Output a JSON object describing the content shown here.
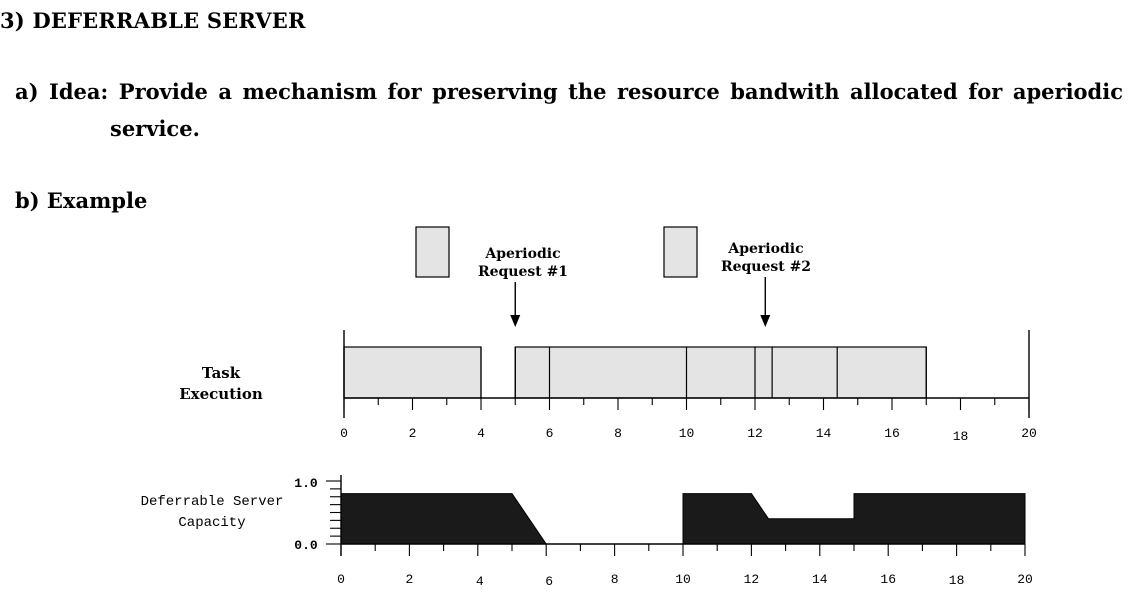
{
  "title": "3) DEFERRABLE SERVER",
  "idea": {
    "line1": "a) Idea: Provide a mechanism for preserving the resource bandwith allocated for aperiodic",
    "line2": "service."
  },
  "example_heading": "b) Example",
  "requests": [
    {
      "line1": "Aperiodic",
      "line2": "Request #1",
      "arrival_time": 5
    },
    {
      "line1": "Aperiodic",
      "line2": "Request #2",
      "arrival_time": 12.3
    }
  ],
  "task_execution": {
    "label_line1": "Task",
    "label_line2": "Execution",
    "busy_segments": [
      [
        0,
        4
      ],
      [
        5,
        17
      ]
    ],
    "segment_boundaries": [
      0,
      4,
      5,
      6,
      10,
      12,
      12.5,
      14.4,
      17
    ],
    "x_ticks": [
      "0",
      "2",
      "4",
      "6",
      "8",
      "10",
      "12",
      "14",
      "16",
      "18",
      "20"
    ],
    "x_range": [
      0,
      20
    ]
  },
  "server_capacity": {
    "label_line1": "Deferrable Server",
    "label_line2": "Capacity",
    "y_max_label": "1.0",
    "y_min_label": "0.0",
    "y_range": [
      0,
      1
    ],
    "profile": [
      [
        0,
        0.8
      ],
      [
        5,
        0.8
      ],
      [
        6,
        0
      ],
      [
        10,
        0
      ],
      [
        10,
        0.8
      ],
      [
        12,
        0.8
      ],
      [
        12.5,
        0.4
      ],
      [
        15,
        0.4
      ],
      [
        15,
        0.8
      ],
      [
        20,
        0.8
      ],
      [
        20,
        0
      ]
    ],
    "x_ticks": [
      "0",
      "2",
      "4",
      "6",
      "8",
      "10",
      "12",
      "14",
      "16",
      "18",
      "20"
    ],
    "x_range": [
      0,
      20
    ]
  },
  "colors": {
    "bar_fill": "#e4e4e4",
    "capacity_fill": "#1a1a1a",
    "line": "#000000"
  }
}
